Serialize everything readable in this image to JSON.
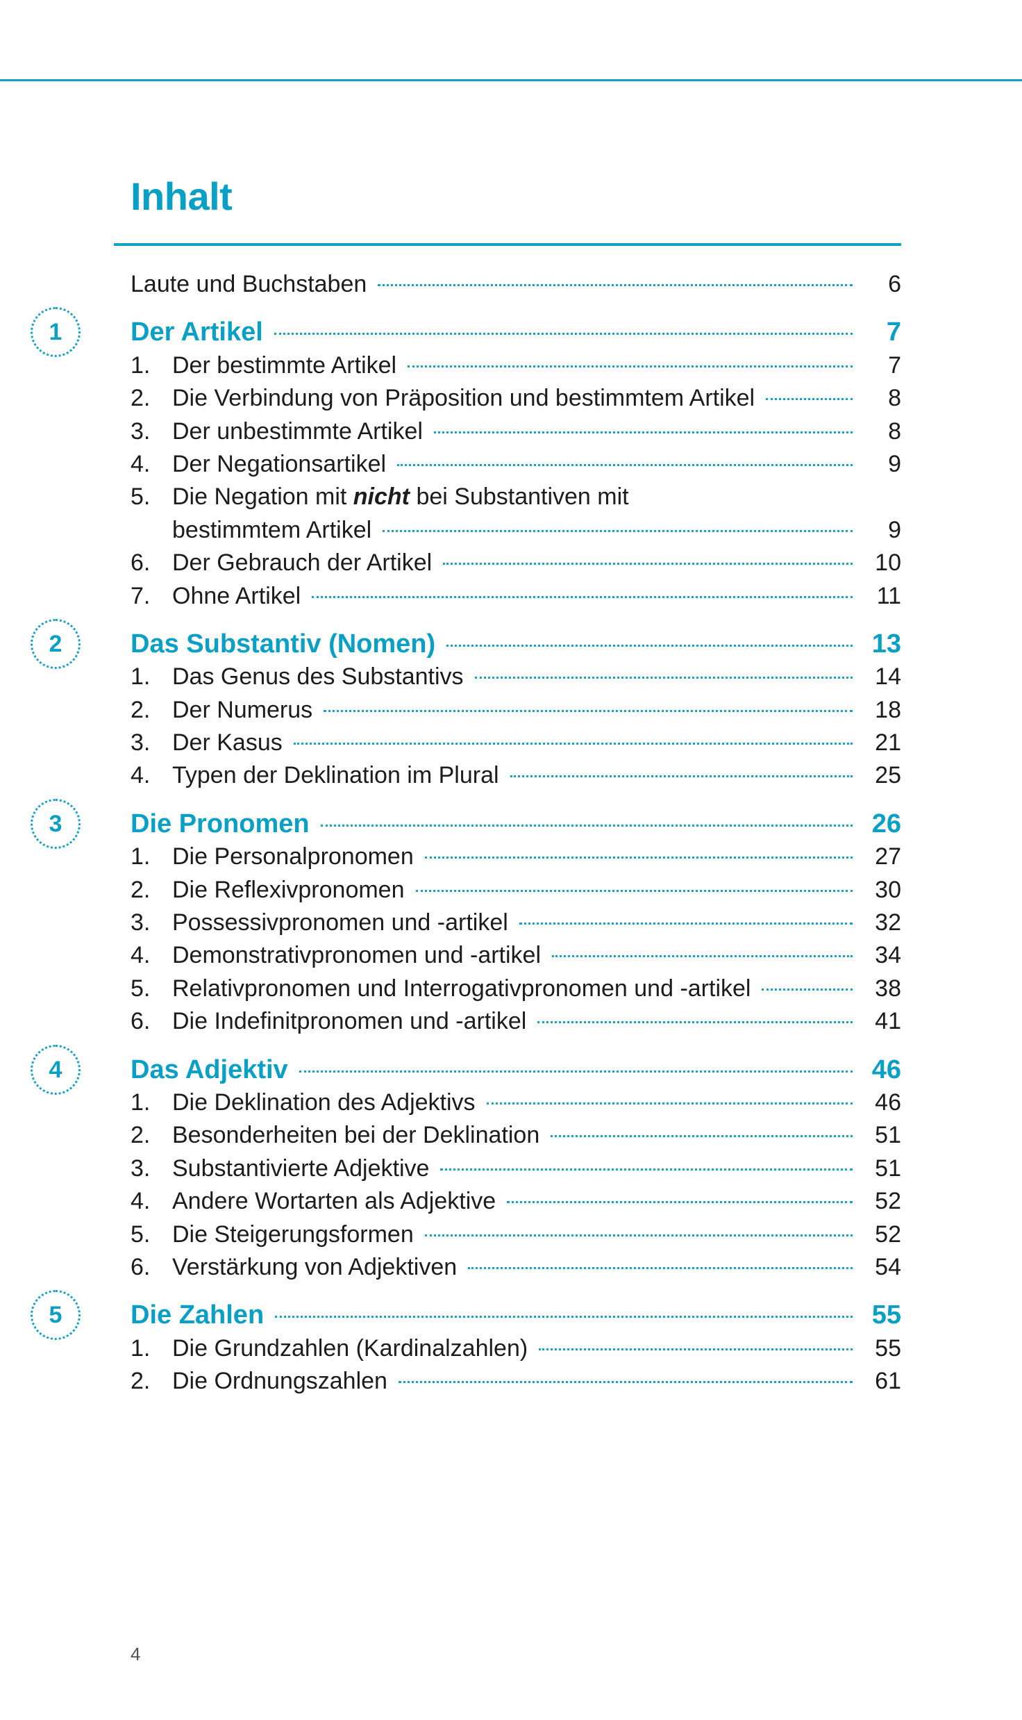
{
  "title": "Inhalt",
  "accent_color": "#0aa0c6",
  "intro": {
    "label": "Laute und Buchstaben",
    "page": "6"
  },
  "sections": [
    {
      "number": "1",
      "title": "Der Artikel",
      "page": "7",
      "items": [
        {
          "num": "1.",
          "label": "Der bestimmte Artikel",
          "page": "7"
        },
        {
          "num": "2.",
          "label": "Die Verbindung von Präposition und bestimmtem Artikel",
          "page": "8"
        },
        {
          "num": "3.",
          "label": "Der unbestimmte Artikel",
          "page": "8"
        },
        {
          "num": "4.",
          "label": "Der Negationsartikel",
          "page": "9"
        },
        {
          "num": "5.",
          "label_pre": "Die Negation mit ",
          "label_em": "nicht",
          "label_post": " bei Substantiven mit",
          "label_line2": "bestimmtem Artikel",
          "page": "9"
        },
        {
          "num": "6.",
          "label": "Der Gebrauch der Artikel",
          "page": "10"
        },
        {
          "num": "7.",
          "label": "Ohne Artikel",
          "page": "11"
        }
      ]
    },
    {
      "number": "2",
      "title": "Das Substantiv (Nomen)",
      "page": "13",
      "items": [
        {
          "num": "1.",
          "label": "Das Genus des Substantivs",
          "page": "14"
        },
        {
          "num": "2.",
          "label": "Der Numerus",
          "page": "18"
        },
        {
          "num": "3.",
          "label": "Der Kasus",
          "page": "21"
        },
        {
          "num": "4.",
          "label": "Typen der Deklination im Plural",
          "page": "25"
        }
      ]
    },
    {
      "number": "3",
      "title": "Die Pronomen",
      "page": "26",
      "items": [
        {
          "num": "1.",
          "label": "Die Personalpronomen",
          "page": "27"
        },
        {
          "num": "2.",
          "label": "Die Reflexivpronomen",
          "page": "30"
        },
        {
          "num": "3.",
          "label": "Possessivpronomen und -artikel",
          "page": "32"
        },
        {
          "num": "4.",
          "label": "Demonstrativpronomen und -artikel",
          "page": "34"
        },
        {
          "num": "5.",
          "label": "Relativpronomen und Interrogativpronomen und -artikel",
          "page": "38"
        },
        {
          "num": "6.",
          "label": "Die Indefinitpronomen und -artikel",
          "page": "41"
        }
      ]
    },
    {
      "number": "4",
      "title": "Das Adjektiv",
      "page": "46",
      "items": [
        {
          "num": "1.",
          "label": "Die Deklination des Adjektivs",
          "page": "46"
        },
        {
          "num": "2.",
          "label": "Besonderheiten bei der Deklination",
          "page": "51"
        },
        {
          "num": "3.",
          "label": "Substantivierte Adjektive",
          "page": "51"
        },
        {
          "num": "4.",
          "label": "Andere Wortarten als Adjektive",
          "page": "52"
        },
        {
          "num": "5.",
          "label": "Die Steigerungsformen",
          "page": "52"
        },
        {
          "num": "6.",
          "label": "Verstärkung von Adjektiven",
          "page": "54"
        }
      ]
    },
    {
      "number": "5",
      "title": "Die Zahlen",
      "page": "55",
      "items": [
        {
          "num": "1.",
          "label": "Die Grundzahlen (Kardinalzahlen)",
          "page": "55"
        },
        {
          "num": "2.",
          "label": "Die Ordnungszahlen",
          "page": "61"
        }
      ]
    }
  ],
  "footer": {
    "page_number": "4"
  }
}
